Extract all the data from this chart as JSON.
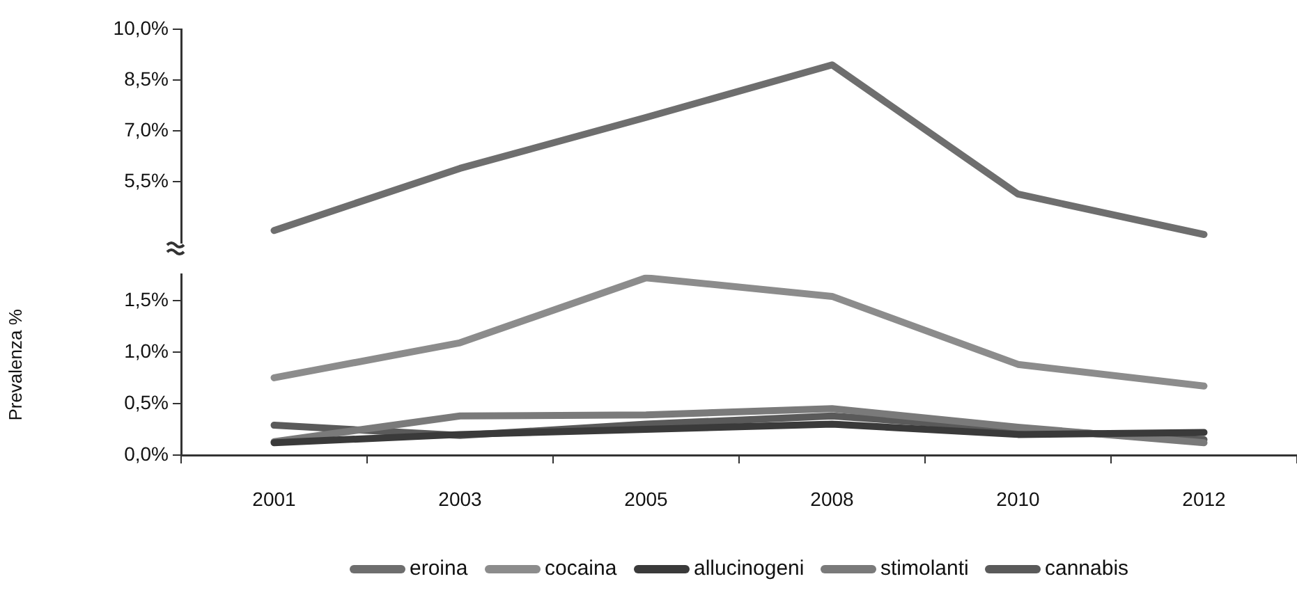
{
  "chart_data": [
    {
      "type": "line",
      "categories": [
        "2001",
        "2003",
        "2005",
        "2008",
        "2010",
        "2012"
      ],
      "ylim": [
        3.7,
        10
      ],
      "yticks": [
        {
          "value": 5.5,
          "label": "5,5%"
        },
        {
          "value": 7,
          "label": "7,0%"
        },
        {
          "value": 8.5,
          "label": "8,5%"
        },
        {
          "value": 10,
          "label": "10,0%"
        }
      ],
      "series": [
        {
          "name": "eroina",
          "color": "#6e6e6e",
          "values": [
            4.07,
            5.9,
            7.4,
            8.95,
            5.14,
            3.95
          ]
        }
      ],
      "tick_labels": "y",
      "grid": false,
      "legend": "bottom",
      "marker": "none",
      "line_style": "solid"
    },
    {
      "type": "line",
      "ylabel": "Prevalenza %",
      "categories": [
        "2001",
        "2003",
        "2005",
        "2008",
        "2010",
        "2012"
      ],
      "ylim": [
        0,
        1.75
      ],
      "yticks": [
        {
          "value": 0,
          "label": "0,0%"
        },
        {
          "value": 0.5,
          "label": "0,5%"
        },
        {
          "value": 1,
          "label": "1,0%"
        },
        {
          "value": 1.5,
          "label": "1,5%"
        }
      ],
      "series": [
        {
          "name": "cocaina",
          "color": "#8c8c8c",
          "values": [
            0.75,
            1.09,
            1.72,
            1.54,
            0.88,
            0.67
          ]
        },
        {
          "name": "allucinogeni",
          "color": "#3a3a3a",
          "values": [
            0.12,
            0.2,
            0.25,
            0.3,
            0.2,
            0.22
          ]
        },
        {
          "name": "stimolanti",
          "color": "#7a7a7a",
          "values": [
            0.13,
            0.38,
            0.39,
            0.45,
            0.27,
            0.12
          ]
        },
        {
          "name": "cannabis",
          "color": "#5a5a5a",
          "values": [
            0.29,
            0.19,
            0.3,
            0.38,
            0.25,
            0.15
          ]
        }
      ],
      "grid": false,
      "legend": "bottom",
      "marker": "none",
      "line_style": "solid"
    }
  ]
}
